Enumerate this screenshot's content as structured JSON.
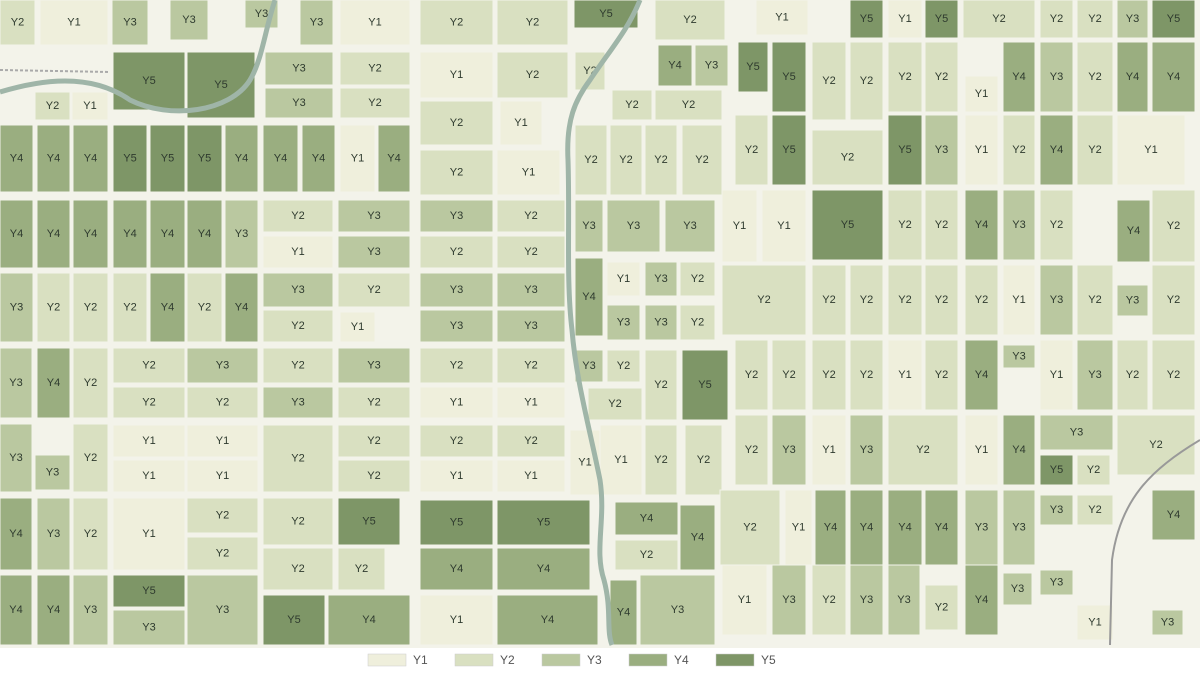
{
  "parcels": [
    [
      "Y2",
      "Y1",
      "Y3",
      "Y3",
      "Y3",
      "Y3",
      "Y1",
      "Y2",
      "Y2",
      "Y5",
      "Y2",
      "Y1",
      "Y5",
      "Y1",
      "Y5",
      "Y2",
      "Y2",
      "Y2",
      "Y3",
      "Y5"
    ],
    [
      "Y2",
      "Y1",
      "Y5",
      "Y5",
      "Y3",
      "Y3",
      "Y2",
      "Y2",
      "Y1",
      "Y2",
      "Y2",
      "Y1",
      "Y2",
      "Y2",
      "Y2",
      "Y4",
      "Y3",
      "Y5",
      "Y5",
      "Y2",
      "Y2",
      "Y2",
      "Y2",
      "Y1",
      "Y4",
      "Y3",
      "Y2",
      "Y4",
      "Y4"
    ],
    [
      "Y4",
      "Y4",
      "Y4",
      "Y5",
      "Y5",
      "Y5",
      "Y4",
      "Y4",
      "Y4",
      "Y1",
      "Y4",
      "Y2",
      "Y1",
      "Y2",
      "Y2",
      "Y2",
      "Y2",
      "Y2",
      "Y5",
      "Y2",
      "Y5",
      "Y3",
      "Y1",
      "Y2",
      "Y4",
      "Y2",
      "Y1"
    ],
    [
      "Y4",
      "Y4",
      "Y4",
      "Y4",
      "Y4",
      "Y4",
      "Y3",
      "Y2",
      "Y1",
      "Y3",
      "Y3",
      "Y3",
      "Y2",
      "Y2",
      "Y2",
      "Y3",
      "Y3",
      "Y3",
      "Y1",
      "Y1",
      "Y5",
      "Y2",
      "Y2",
      "Y4",
      "Y3",
      "Y2",
      "Y4",
      "Y2"
    ],
    [
      "Y3",
      "Y2",
      "Y2",
      "Y2",
      "Y4",
      "Y2",
      "Y4",
      "Y3",
      "Y2",
      "Y2",
      "Y1",
      "Y3",
      "Y3",
      "Y3",
      "Y3",
      "Y4",
      "Y1",
      "Y3",
      "Y2",
      "Y3",
      "Y3",
      "Y2",
      "Y2",
      "Y2",
      "Y2",
      "Y2",
      "Y2",
      "Y2",
      "Y1",
      "Y3",
      "Y2",
      "Y3",
      "Y2"
    ],
    [
      "Y3",
      "Y4",
      "Y2",
      "Y2",
      "Y2",
      "Y3",
      "Y2",
      "Y2",
      "Y3",
      "Y3",
      "Y2",
      "Y2",
      "Y1",
      "Y2",
      "Y1",
      "Y3",
      "Y2",
      "Y2",
      "Y2",
      "Y5",
      "Y2",
      "Y2",
      "Y2",
      "Y2",
      "Y1",
      "Y2",
      "Y4",
      "Y3",
      "Y1",
      "Y3",
      "Y2",
      "Y2"
    ],
    [
      "Y3",
      "Y3",
      "Y2",
      "Y1",
      "Y1",
      "Y1",
      "Y1",
      "Y2",
      "Y2",
      "Y2",
      "Y2",
      "Y1",
      "Y2",
      "Y1",
      "Y1",
      "Y1",
      "Y2",
      "Y2",
      "Y2",
      "Y3",
      "Y1",
      "Y3",
      "Y2",
      "Y1",
      "Y4",
      "Y3",
      "Y5",
      "Y2",
      "Y2"
    ],
    [
      "Y4",
      "Y3",
      "Y2",
      "Y1",
      "Y2",
      "Y2",
      "Y2",
      "Y5",
      "Y5",
      "Y5",
      "Y4",
      "Y2",
      "Y4",
      "Y2",
      "Y1",
      "Y4",
      "Y4",
      "Y4",
      "Y4",
      "Y3",
      "Y3",
      "Y3",
      "Y2",
      "Y4"
    ],
    [
      "Y4",
      "Y4",
      "Y3",
      "Y5",
      "Y3",
      "Y3",
      "Y2",
      "Y5",
      "Y2",
      "Y4",
      "Y4",
      "Y1",
      "Y4",
      "Y4",
      "Y4",
      "Y3",
      "Y1",
      "Y3",
      "Y2",
      "Y3",
      "Y3",
      "Y2",
      "Y4",
      "Y3",
      "Y3",
      "Y1",
      "Y3"
    ]
  ],
  "legend": [
    {
      "label": "Y1",
      "color": "#efefdc"
    },
    {
      "label": "Y2",
      "color": "#d9e0c1"
    },
    {
      "label": "Y3",
      "color": "#bac8a0"
    },
    {
      "label": "Y4",
      "color": "#9aae80"
    },
    {
      "label": "Y5",
      "color": "#7e9667"
    }
  ]
}
